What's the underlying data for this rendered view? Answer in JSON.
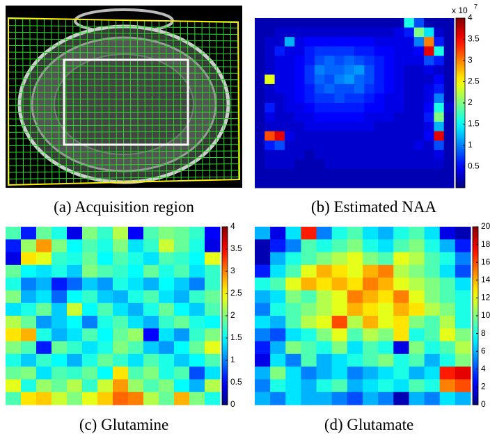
{
  "image_panel": {
    "caption": "(a) Acquisition region"
  },
  "chart_data": [
    {
      "type": "heatmap",
      "caption": "(b) Estimated NAA",
      "colormap": "jet",
      "clim": [
        0,
        4
      ],
      "colorbar_multiplier": "x 10",
      "colorbar_exponent": "7",
      "cticks": [
        0.5,
        1,
        1.5,
        2,
        2.5,
        3,
        3.5,
        4
      ],
      "values": [
        [
          0.2,
          0.2,
          0.2,
          0.2,
          0.2,
          0.2,
          0.2,
          0.2,
          0.2,
          0.2,
          0.2,
          0.2,
          0.2,
          0.2,
          0.2,
          1.6,
          0.8,
          0.2,
          0.2,
          0.2
        ],
        [
          0.2,
          0.2,
          0.3,
          0.3,
          0.3,
          0.3,
          0.3,
          0.3,
          0.3,
          0.3,
          0.3,
          0.3,
          0.3,
          0.3,
          0.4,
          0.6,
          2.0,
          1.4,
          0.3,
          0.2
        ],
        [
          0.2,
          0.3,
          0.3,
          1.2,
          0.4,
          0.5,
          0.5,
          0.5,
          0.5,
          0.5,
          0.5,
          0.5,
          0.4,
          0.4,
          0.4,
          0.4,
          1.0,
          3.0,
          0.6,
          0.2
        ],
        [
          0.2,
          0.3,
          0.6,
          0.4,
          0.4,
          0.6,
          0.7,
          0.7,
          0.7,
          0.7,
          0.6,
          0.6,
          0.5,
          0.5,
          0.4,
          0.4,
          0.5,
          3.6,
          1.6,
          0.2
        ],
        [
          0.2,
          0.3,
          0.4,
          0.4,
          0.5,
          0.6,
          0.8,
          0.9,
          0.8,
          0.9,
          0.8,
          0.7,
          0.6,
          0.5,
          0.4,
          0.4,
          0.4,
          0.8,
          0.6,
          0.2
        ],
        [
          0.2,
          0.3,
          0.4,
          0.4,
          0.5,
          0.7,
          1.0,
          0.9,
          0.9,
          1.0,
          1.1,
          0.8,
          0.6,
          0.5,
          0.4,
          0.3,
          0.3,
          0.4,
          0.3,
          0.2
        ],
        [
          0.2,
          2.4,
          0.4,
          0.4,
          0.5,
          0.7,
          0.9,
          0.8,
          1.0,
          1.1,
          0.9,
          0.8,
          0.6,
          0.5,
          0.4,
          0.3,
          0.3,
          0.3,
          0.5,
          0.2
        ],
        [
          0.2,
          0.3,
          0.4,
          0.4,
          0.5,
          0.6,
          0.8,
          0.9,
          0.8,
          0.8,
          0.9,
          0.7,
          0.6,
          0.5,
          0.4,
          0.3,
          0.3,
          0.4,
          0.6,
          0.2
        ],
        [
          0.2,
          0.3,
          0.3,
          0.4,
          0.5,
          0.6,
          0.7,
          0.7,
          0.8,
          0.7,
          0.7,
          0.6,
          0.5,
          0.4,
          0.4,
          0.3,
          0.3,
          0.4,
          1.0,
          0.2
        ],
        [
          0.2,
          0.6,
          0.3,
          0.4,
          0.4,
          0.5,
          0.6,
          0.6,
          0.6,
          0.6,
          0.6,
          0.5,
          0.5,
          0.4,
          0.4,
          0.3,
          0.3,
          0.5,
          1.6,
          0.3
        ],
        [
          0.2,
          0.4,
          0.3,
          0.3,
          0.4,
          0.4,
          0.5,
          0.5,
          0.5,
          0.5,
          0.5,
          0.4,
          0.4,
          0.4,
          0.3,
          0.3,
          0.3,
          0.6,
          2.0,
          0.2
        ],
        [
          0.2,
          0.3,
          0.3,
          0.3,
          0.3,
          0.4,
          0.4,
          0.4,
          0.4,
          0.4,
          0.4,
          0.4,
          0.3,
          0.3,
          0.3,
          0.3,
          0.3,
          0.4,
          1.2,
          0.2
        ],
        [
          0.2,
          3.2,
          3.6,
          0.4,
          0.3,
          0.3,
          0.3,
          0.3,
          0.3,
          0.3,
          0.3,
          0.3,
          0.3,
          0.3,
          0.3,
          0.3,
          0.3,
          0.5,
          3.6,
          0.2
        ],
        [
          0.2,
          0.6,
          0.8,
          0.3,
          0.3,
          0.3,
          0.3,
          0.3,
          0.3,
          0.3,
          0.3,
          0.3,
          0.3,
          0.3,
          0.3,
          0.3,
          0.4,
          0.3,
          0.8,
          0.2
        ],
        [
          0.2,
          0.3,
          0.3,
          0.3,
          0.3,
          0.2,
          0.3,
          0.3,
          0.3,
          0.3,
          0.3,
          0.3,
          0.3,
          0.3,
          0.3,
          0.3,
          0.3,
          0.3,
          0.4,
          0.2
        ],
        [
          0.2,
          0.3,
          0.3,
          0.3,
          0.2,
          0.2,
          0.2,
          0.3,
          0.3,
          0.3,
          0.3,
          0.3,
          0.3,
          0.3,
          0.3,
          0.3,
          0.3,
          0.3,
          0.3,
          0.2
        ],
        [
          0.2,
          0.2,
          0.2,
          0.2,
          0.2,
          0.2,
          0.2,
          0.2,
          0.2,
          0.2,
          0.2,
          0.2,
          0.2,
          0.2,
          0.2,
          0.2,
          0.2,
          0.2,
          0.2,
          0.2
        ],
        [
          0.2,
          0.2,
          0.2,
          0.2,
          0.2,
          0.2,
          0.2,
          0.2,
          0.2,
          0.2,
          0.2,
          0.2,
          0.2,
          0.2,
          0.2,
          0.2,
          0.2,
          0.2,
          0.2,
          0.2
        ]
      ]
    },
    {
      "type": "heatmap",
      "caption": "(c) Glutamine",
      "colormap": "jet",
      "clim": [
        0,
        4
      ],
      "cticks": [
        0,
        0.5,
        1,
        1.5,
        2,
        2.5,
        3,
        3.5,
        4
      ],
      "values": [
        [
          1.8,
          0.6,
          1.9,
          1.6,
          0.4,
          2.0,
          1.7,
          2.2,
          0.5,
          1.8,
          2.0,
          1.9,
          1.7,
          0.5
        ],
        [
          0.6,
          2.1,
          2.9,
          2.0,
          1.5,
          1.8,
          1.6,
          2.0,
          1.4,
          1.7,
          2.3,
          1.9,
          1.6,
          0.4
        ],
        [
          0.4,
          2.6,
          2.4,
          1.7,
          1.6,
          1.9,
          1.5,
          1.8,
          1.6,
          1.4,
          1.8,
          1.7,
          1.5,
          2.4
        ],
        [
          1.9,
          1.5,
          1.4,
          1.6,
          1.3,
          2.0,
          1.8,
          1.7,
          1.5,
          1.9,
          1.6,
          1.8,
          1.4,
          1.7
        ],
        [
          1.6,
          1.0,
          1.2,
          0.6,
          0.9,
          1.3,
          1.1,
          1.6,
          1.4,
          1.2,
          1.5,
          1.3,
          1.0,
          1.7
        ],
        [
          2.0,
          1.2,
          1.4,
          0.9,
          1.5,
          1.7,
          1.3,
          1.2,
          1.6,
          1.8,
          1.4,
          1.2,
          1.7,
          1.9
        ],
        [
          1.4,
          1.6,
          1.9,
          1.3,
          2.3,
          1.5,
          1.8,
          1.4,
          1.2,
          1.6,
          1.9,
          1.5,
          1.3,
          1.8
        ],
        [
          2.2,
          1.9,
          1.1,
          1.3,
          1.5,
          1.0,
          1.6,
          1.8,
          1.4,
          1.2,
          1.7,
          1.9,
          1.6,
          1.5
        ],
        [
          2.6,
          2.8,
          1.6,
          1.2,
          1.4,
          1.8,
          1.5,
          1.9,
          2.1,
          0.5,
          1.4,
          1.1,
          1.7,
          2.0
        ],
        [
          2.0,
          1.8,
          0.6,
          1.9,
          1.7,
          1.4,
          1.6,
          2.0,
          1.8,
          1.3,
          1.1,
          1.5,
          1.9,
          2.4
        ],
        [
          1.6,
          1.3,
          1.7,
          1.5,
          1.2,
          1.6,
          1.9,
          1.7,
          1.4,
          1.8,
          1.6,
          1.3,
          1.5,
          1.8
        ],
        [
          1.9,
          2.0,
          1.4,
          1.8,
          1.7,
          1.9,
          1.5,
          2.6,
          1.8,
          2.0,
          1.6,
          1.8,
          0.8,
          1.4
        ],
        [
          2.4,
          1.6,
          2.1,
          1.9,
          2.2,
          1.7,
          2.3,
          2.9,
          2.1,
          1.8,
          2.0,
          1.5,
          1.2,
          2.2
        ],
        [
          1.8,
          2.6,
          2.7,
          2.3,
          2.0,
          2.4,
          2.7,
          3.1,
          3.0,
          2.2,
          1.9,
          2.8,
          2.0,
          1.6
        ]
      ]
    },
    {
      "type": "heatmap",
      "caption": "(d) Glutamate",
      "colormap": "jet",
      "clim": [
        0,
        20
      ],
      "cticks": [
        0,
        2,
        4,
        6,
        8,
        10,
        12,
        14,
        16,
        18,
        20
      ],
      "values": [
        [
          6,
          2,
          7,
          17,
          5,
          8,
          9,
          7,
          6,
          8,
          9,
          7,
          2,
          1
        ],
        [
          1,
          3,
          5,
          9,
          8,
          9,
          10,
          8,
          7,
          9,
          10,
          8,
          6,
          3
        ],
        [
          1,
          6,
          8,
          9,
          10,
          11,
          12,
          10,
          9,
          12,
          11,
          9,
          8,
          5
        ],
        [
          3,
          7,
          9,
          12,
          14,
          13,
          12,
          14,
          15,
          11,
          10,
          9,
          7,
          4
        ],
        [
          8,
          9,
          12,
          14,
          13,
          14,
          13,
          15,
          14,
          12,
          11,
          10,
          9,
          7
        ],
        [
          6,
          7,
          10,
          9,
          11,
          12,
          15,
          14,
          13,
          15,
          12,
          10,
          9,
          8
        ],
        [
          5,
          8,
          9,
          10,
          11,
          12,
          14,
          13,
          12,
          14,
          13,
          11,
          10,
          8
        ],
        [
          7,
          6,
          9,
          11,
          12,
          16,
          11,
          14,
          12,
          13,
          10,
          9,
          11,
          8
        ],
        [
          5,
          4,
          7,
          8,
          10,
          12,
          9,
          11,
          10,
          13,
          8,
          9,
          12,
          10
        ],
        [
          3,
          6,
          10,
          9,
          8,
          10,
          7,
          9,
          8,
          2,
          10,
          8,
          9,
          11
        ],
        [
          2,
          7,
          5,
          9,
          6,
          7,
          8,
          9,
          10,
          8,
          9,
          6,
          8,
          10
        ],
        [
          6,
          10,
          7,
          5,
          6,
          7,
          5,
          6,
          7,
          8,
          6,
          7,
          17,
          18
        ],
        [
          5,
          8,
          7,
          6,
          8,
          9,
          6,
          7,
          8,
          7,
          9,
          8,
          15,
          16
        ],
        [
          6,
          5,
          7,
          6,
          6,
          5,
          4,
          6,
          5,
          1,
          6,
          5,
          7,
          6
        ]
      ]
    }
  ]
}
